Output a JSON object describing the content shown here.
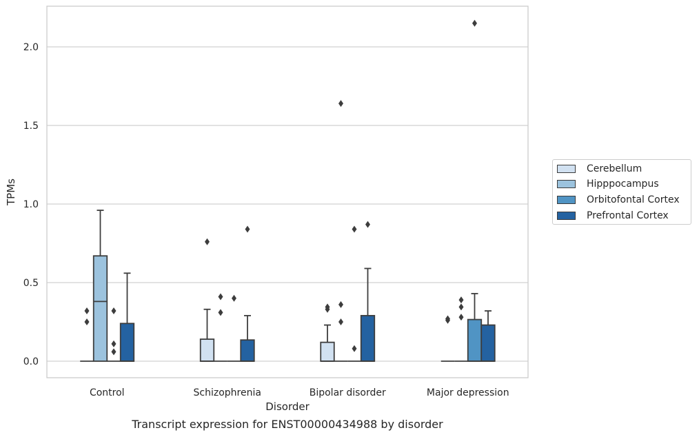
{
  "chart_data": {
    "type": "box",
    "categories": [
      "Control",
      "Schizophrenia",
      "Bipolar disorder",
      "Major depression"
    ],
    "xlabel": "Disorder",
    "ylabel": "TPMs",
    "ylim": [
      -0.1,
      2.26
    ],
    "yticks": [
      0.0,
      0.5,
      1.0,
      1.5,
      2.0
    ],
    "ytick_labels": [
      "0.0",
      "0.5",
      "1.0",
      "1.5",
      "2.0"
    ],
    "grid": "horizontal",
    "legend_position": "right",
    "series": [
      {
        "name": "Cerebellum",
        "color": "#d1e1f1",
        "boxes": [
          {
            "q1": 0,
            "median": 0,
            "q3": 0,
            "whisker_low": 0,
            "whisker_high": 0,
            "outliers": [
              0.25,
              0.32
            ]
          },
          {
            "q1": 0,
            "median": 0,
            "q3": 0.14,
            "whisker_low": 0,
            "whisker_high": 0.33,
            "outliers": [
              0.76
            ]
          },
          {
            "q1": 0,
            "median": 0,
            "q3": 0.12,
            "whisker_low": 0,
            "whisker_high": 0.23,
            "outliers": [
              0.33,
              0.345
            ]
          },
          {
            "q1": 0,
            "median": 0,
            "q3": 0,
            "whisker_low": 0,
            "whisker_high": 0,
            "outliers": [
              0.26,
              0.27
            ]
          }
        ]
      },
      {
        "name": "Hipppocampus",
        "color": "#9cc3de",
        "boxes": [
          {
            "q1": 0,
            "median": 0.38,
            "q3": 0.67,
            "whisker_low": 0,
            "whisker_high": 0.96,
            "outliers": []
          },
          {
            "q1": 0,
            "median": 0,
            "q3": 0,
            "whisker_low": 0,
            "whisker_high": 0,
            "outliers": [
              0.31,
              0.41
            ]
          },
          {
            "q1": 0,
            "median": 0,
            "q3": 0,
            "whisker_low": 0,
            "whisker_high": 0,
            "outliers": [
              1.64,
              0.36,
              0.25
            ]
          },
          {
            "q1": 0,
            "median": 0,
            "q3": 0,
            "whisker_low": 0,
            "whisker_high": 0,
            "outliers": [
              0.28,
              0.345,
              0.39
            ]
          }
        ]
      },
      {
        "name": "Orbitofontal Cortex",
        "color": "#5094c4",
        "boxes": [
          {
            "q1": 0,
            "median": 0,
            "q3": 0,
            "whisker_low": 0,
            "whisker_high": 0,
            "outliers": [
              0.06,
              0.11,
              0.32
            ]
          },
          {
            "q1": 0,
            "median": 0,
            "q3": 0,
            "whisker_low": 0,
            "whisker_high": 0,
            "outliers": [
              0.4
            ]
          },
          {
            "q1": 0,
            "median": 0,
            "q3": 0,
            "whisker_low": 0,
            "whisker_high": 0,
            "outliers": [
              0.08,
              0.84
            ]
          },
          {
            "q1": 0,
            "median": 0,
            "q3": 0.265,
            "whisker_low": 0,
            "whisker_high": 0.43,
            "outliers": [
              2.15
            ]
          }
        ]
      },
      {
        "name": "Prefrontal Cortex",
        "color": "#2462a1",
        "boxes": [
          {
            "q1": 0,
            "median": 0,
            "q3": 0.24,
            "whisker_low": 0,
            "whisker_high": 0.56,
            "outliers": []
          },
          {
            "q1": 0,
            "median": 0,
            "q3": 0.135,
            "whisker_low": 0,
            "whisker_high": 0.29,
            "outliers": [
              0.84
            ]
          },
          {
            "q1": 0,
            "median": 0,
            "q3": 0.29,
            "whisker_low": 0,
            "whisker_high": 0.59,
            "outliers": [
              0.87
            ]
          },
          {
            "q1": 0,
            "median": 0,
            "q3": 0.23,
            "whisker_low": 0,
            "whisker_high": 0.32,
            "outliers": []
          }
        ]
      }
    ]
  },
  "caption": "Transcript expression for ENST00000434988 by disorder"
}
